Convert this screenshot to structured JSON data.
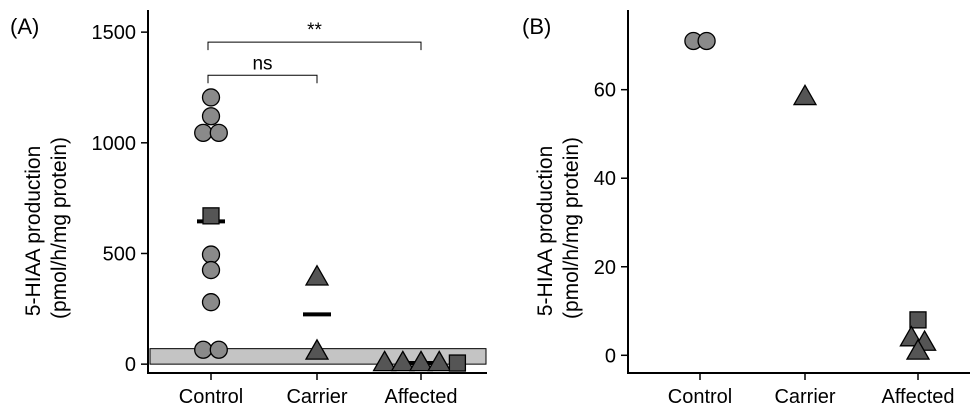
{
  "chart_data": [
    {
      "type": "scatter",
      "panel_label": "(A)",
      "ylabel": "5-HIAA production\n(pmol/h/mg protein)",
      "categories": [
        "Control",
        "Carrier",
        "Affected"
      ],
      "ylim": [
        -40,
        1600
      ],
      "yticks": [
        0,
        500,
        1000,
        1500
      ],
      "grid": false,
      "reference_band": [
        0,
        70
      ],
      "points": [
        {
          "group": "Control",
          "value": 1205,
          "shape": "circle"
        },
        {
          "group": "Control",
          "value": 1120,
          "shape": "circle"
        },
        {
          "group": "Control",
          "value": 1045,
          "shape": "circle"
        },
        {
          "group": "Control",
          "value": 1045,
          "shape": "circle"
        },
        {
          "group": "Control",
          "value": 670,
          "shape": "square"
        },
        {
          "group": "Control",
          "value": 495,
          "shape": "circle"
        },
        {
          "group": "Control",
          "value": 425,
          "shape": "circle"
        },
        {
          "group": "Control",
          "value": 280,
          "shape": "circle"
        },
        {
          "group": "Control",
          "value": 65,
          "shape": "circle"
        },
        {
          "group": "Control",
          "value": 65,
          "shape": "circle"
        },
        {
          "group": "Carrier",
          "value": 395,
          "shape": "triangle"
        },
        {
          "group": "Carrier",
          "value": 60,
          "shape": "triangle"
        },
        {
          "group": "Affected",
          "value": 8,
          "shape": "triangle"
        },
        {
          "group": "Affected",
          "value": 8,
          "shape": "triangle"
        },
        {
          "group": "Affected",
          "value": 8,
          "shape": "triangle"
        },
        {
          "group": "Affected",
          "value": 8,
          "shape": "triangle"
        },
        {
          "group": "Affected",
          "value": 5,
          "shape": "square"
        }
      ],
      "means": [
        {
          "group": "Control",
          "value": 645
        },
        {
          "group": "Carrier",
          "value": 225
        },
        {
          "group": "Affected",
          "value": 5
        }
      ],
      "annotations": [
        {
          "from": "Control",
          "to": "Carrier",
          "label": "ns",
          "y": 1305
        },
        {
          "from": "Control",
          "to": "Affected",
          "label": "**",
          "y": 1455
        }
      ]
    },
    {
      "type": "scatter",
      "panel_label": "(B)",
      "ylabel": "5-HIAA production\n(pmol/h/mg protein)",
      "categories": [
        "Control",
        "Carrier",
        "Affected"
      ],
      "ylim": [
        -4,
        78
      ],
      "yticks": [
        0,
        20,
        40,
        60
      ],
      "grid": false,
      "points": [
        {
          "group": "Control",
          "value": 71,
          "shape": "circle"
        },
        {
          "group": "Control",
          "value": 71,
          "shape": "circle"
        },
        {
          "group": "Carrier",
          "value": 58.5,
          "shape": "triangle"
        },
        {
          "group": "Affected",
          "value": 8,
          "shape": "square"
        },
        {
          "group": "Affected",
          "value": 4,
          "shape": "triangle"
        },
        {
          "group": "Affected",
          "value": 3,
          "shape": "triangle"
        },
        {
          "group": "Affected",
          "value": 1,
          "shape": "triangle"
        }
      ]
    }
  ]
}
